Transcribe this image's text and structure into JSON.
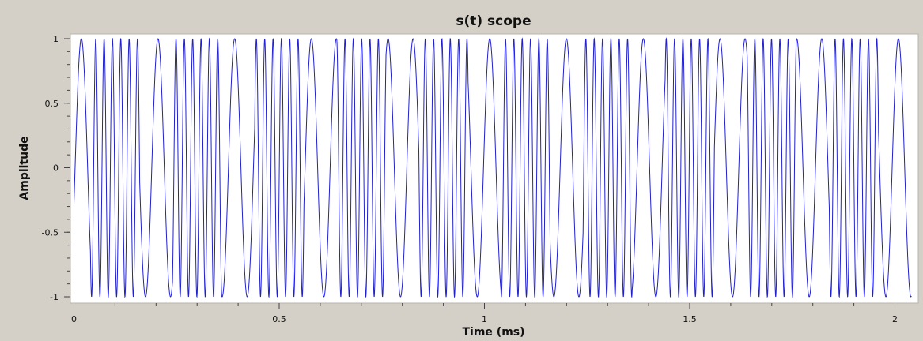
{
  "chart_data": {
    "type": "line",
    "title": "s(t) scope",
    "xlabel": "Time (ms)",
    "ylabel": "Amplitude",
    "xlim": [
      0,
      2.05
    ],
    "ylim": [
      -1,
      1
    ],
    "x_ticks": [
      0,
      0.5,
      1,
      1.5,
      2
    ],
    "x_tick_labels": [
      "0",
      "0.5",
      "1",
      "1.5",
      "2"
    ],
    "y_ticks": [
      1,
      0.5,
      0,
      -0.5,
      -1
    ],
    "y_tick_labels": [
      "1",
      "0.5",
      "0",
      "-0.5",
      "-1"
    ],
    "grid": false,
    "colors": {
      "series": "#2020d0",
      "plot_bg": "#ffffff",
      "frame_bg": "#d4d0c8"
    },
    "signal": {
      "description": "frequency-shift keyed pattern, repeating every ~0.2 ms",
      "period_ms": 0.2,
      "low_freq_khz": 16.4,
      "high_freq_khz": 49.2,
      "pattern": [
        0,
        0,
        1,
        1,
        1,
        1,
        1,
        1,
        0,
        0
      ],
      "phase_rad": 4.43
    }
  }
}
